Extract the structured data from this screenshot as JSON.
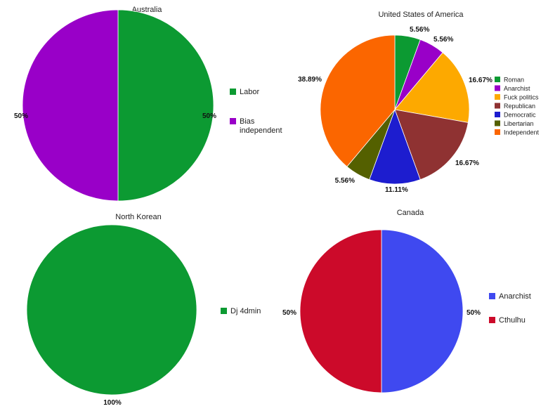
{
  "chart_data": [
    {
      "type": "pie",
      "title": "Australia",
      "slices": [
        {
          "label": "Labor",
          "value": 50,
          "pct_label": "50%",
          "color": "#0c9a32"
        },
        {
          "label": "Bias independent",
          "value": 50,
          "pct_label": "50%",
          "color": "#9900c8"
        }
      ],
      "legend_position": "right"
    },
    {
      "type": "pie",
      "title": "United States of America",
      "slices": [
        {
          "label": "Roman",
          "value": 5.56,
          "pct_label": "5.56%",
          "color": "#0c9a32"
        },
        {
          "label": "Anarchist",
          "value": 5.56,
          "pct_label": "5.56%",
          "color": "#9900c8"
        },
        {
          "label": "Fuck politics",
          "value": 16.67,
          "pct_label": "16.67%",
          "color": "#fda900"
        },
        {
          "label": "Republican",
          "value": 16.67,
          "pct_label": "16.67%",
          "color": "#8f3232"
        },
        {
          "label": "Democratic",
          "value": 11.11,
          "pct_label": "11.11%",
          "color": "#1d1dcf"
        },
        {
          "label": "Libertarian",
          "value": 5.56,
          "pct_label": "5.56%",
          "color": "#546000"
        },
        {
          "label": "Independent",
          "value": 38.89,
          "pct_label": "38.89%",
          "color": "#fb6600"
        }
      ],
      "legend_position": "right"
    },
    {
      "type": "pie",
      "title": "North Korean",
      "slices": [
        {
          "label": "Dj 4dmin",
          "value": 100,
          "pct_label": "100%",
          "color": "#0c9a32"
        }
      ],
      "legend_position": "right"
    },
    {
      "type": "pie",
      "title": "Canada",
      "slices": [
        {
          "label": "Anarchist",
          "value": 50,
          "pct_label": "50%",
          "color": "#3f49f0"
        },
        {
          "label": "Cthulhu",
          "value": 50,
          "pct_label": "50%",
          "color": "#cc0a2a"
        }
      ],
      "legend_position": "right"
    }
  ]
}
